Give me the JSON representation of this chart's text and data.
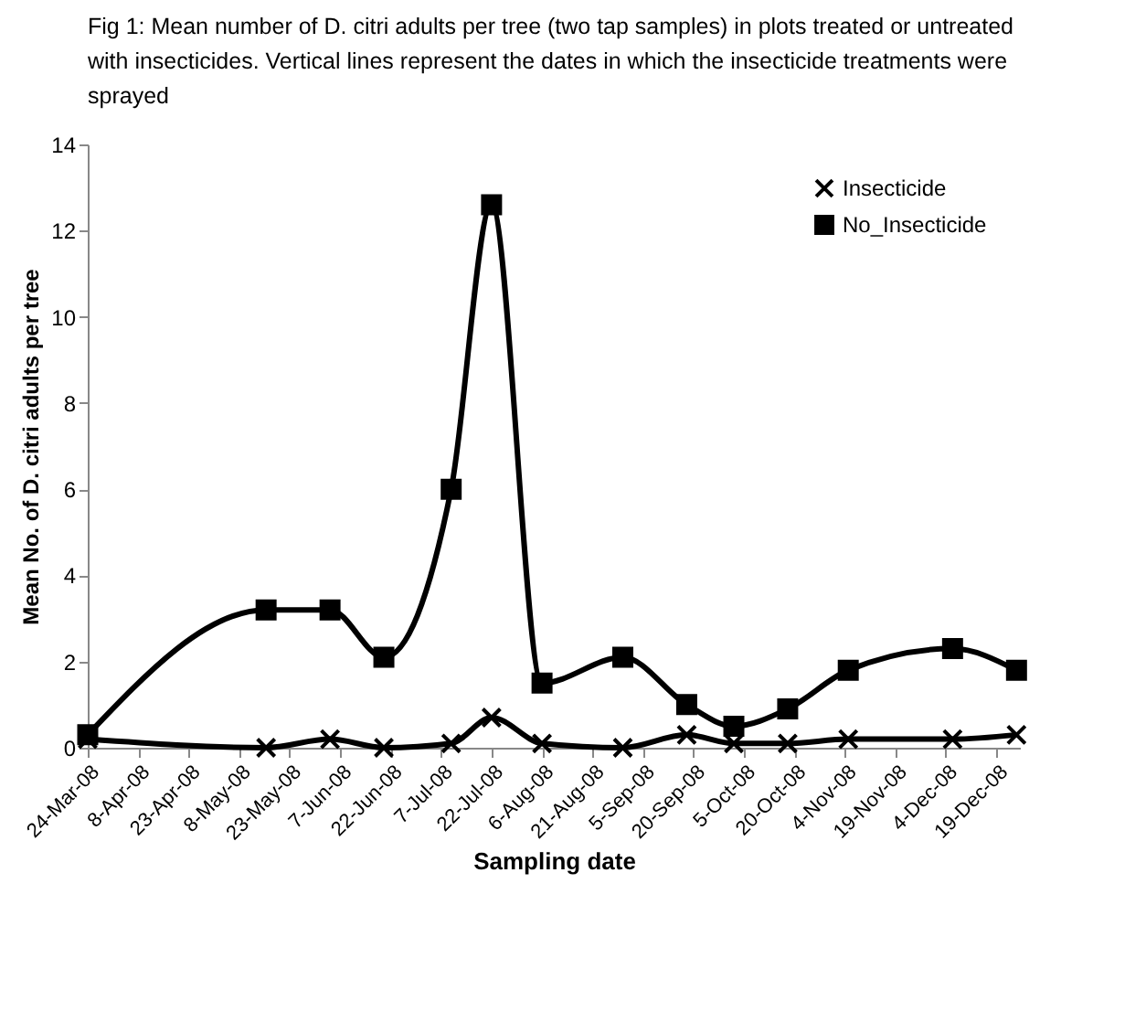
{
  "chart_data": {
    "type": "line",
    "title": "Fig 1: Mean number of D. citri adults per tree (two tap samples) in plots treated or untreated with insecticides. Vertical lines represent the dates in which the insecticide treatments were sprayed",
    "xlabel": "Sampling date",
    "ylabel": "Mean No. of D. citri adults per tree",
    "x": [
      "2008-03-24",
      "2008-05-16",
      "2008-06-04",
      "2008-06-20",
      "2008-07-10",
      "2008-07-22",
      "2008-08-06",
      "2008-08-30",
      "2008-09-18",
      "2008-10-02",
      "2008-10-18",
      "2008-11-05",
      "2008-12-06",
      "2008-12-25"
    ],
    "series": [
      {
        "name": "Insecticide",
        "color": "#000000",
        "marker": "cross",
        "values": [
          0.2,
          0.0,
          0.2,
          0.0,
          0.1,
          0.7,
          0.1,
          0.0,
          0.3,
          0.1,
          0.1,
          0.2,
          0.2,
          0.3
        ]
      },
      {
        "name": "No_Insecticide",
        "color": "#000000",
        "marker": "square",
        "values": [
          0.3,
          3.2,
          3.2,
          2.1,
          6.0,
          12.6,
          1.5,
          2.1,
          1.0,
          0.5,
          0.9,
          1.8,
          2.3,
          1.8
        ]
      }
    ],
    "xlim": [
      "2008-03-24",
      "2008-12-26"
    ],
    "xticks": [
      {
        "value": "2008-03-24",
        "label": "24-Mar-08"
      },
      {
        "value": "2008-04-08",
        "label": "8-Apr-08"
      },
      {
        "value": "2008-04-23",
        "label": "23-Apr-08"
      },
      {
        "value": "2008-05-08",
        "label": "8-May-08"
      },
      {
        "value": "2008-05-23",
        "label": "23-May-08"
      },
      {
        "value": "2008-06-07",
        "label": "7-Jun-08"
      },
      {
        "value": "2008-06-22",
        "label": "22-Jun-08"
      },
      {
        "value": "2008-07-07",
        "label": "7-Jul-08"
      },
      {
        "value": "2008-07-22",
        "label": "22-Jul-08"
      },
      {
        "value": "2008-08-06",
        "label": "6-Aug-08"
      },
      {
        "value": "2008-08-21",
        "label": "21-Aug-08"
      },
      {
        "value": "2008-09-05",
        "label": "5-Sep-08"
      },
      {
        "value": "2008-09-20",
        "label": "20-Sep-08"
      },
      {
        "value": "2008-10-05",
        "label": "5-Oct-08"
      },
      {
        "value": "2008-10-20",
        "label": "20-Oct-08"
      },
      {
        "value": "2008-11-04",
        "label": "4-Nov-08"
      },
      {
        "value": "2008-11-19",
        "label": "19-Nov-08"
      },
      {
        "value": "2008-12-04",
        "label": "4-Dec-08"
      },
      {
        "value": "2008-12-19",
        "label": "19-Dec-08"
      }
    ],
    "ylim": [
      0,
      14
    ],
    "yticks": [
      0,
      2,
      4,
      6,
      8,
      10,
      12,
      14
    ],
    "grid": false,
    "legend": "top right",
    "line_style": "solid"
  }
}
